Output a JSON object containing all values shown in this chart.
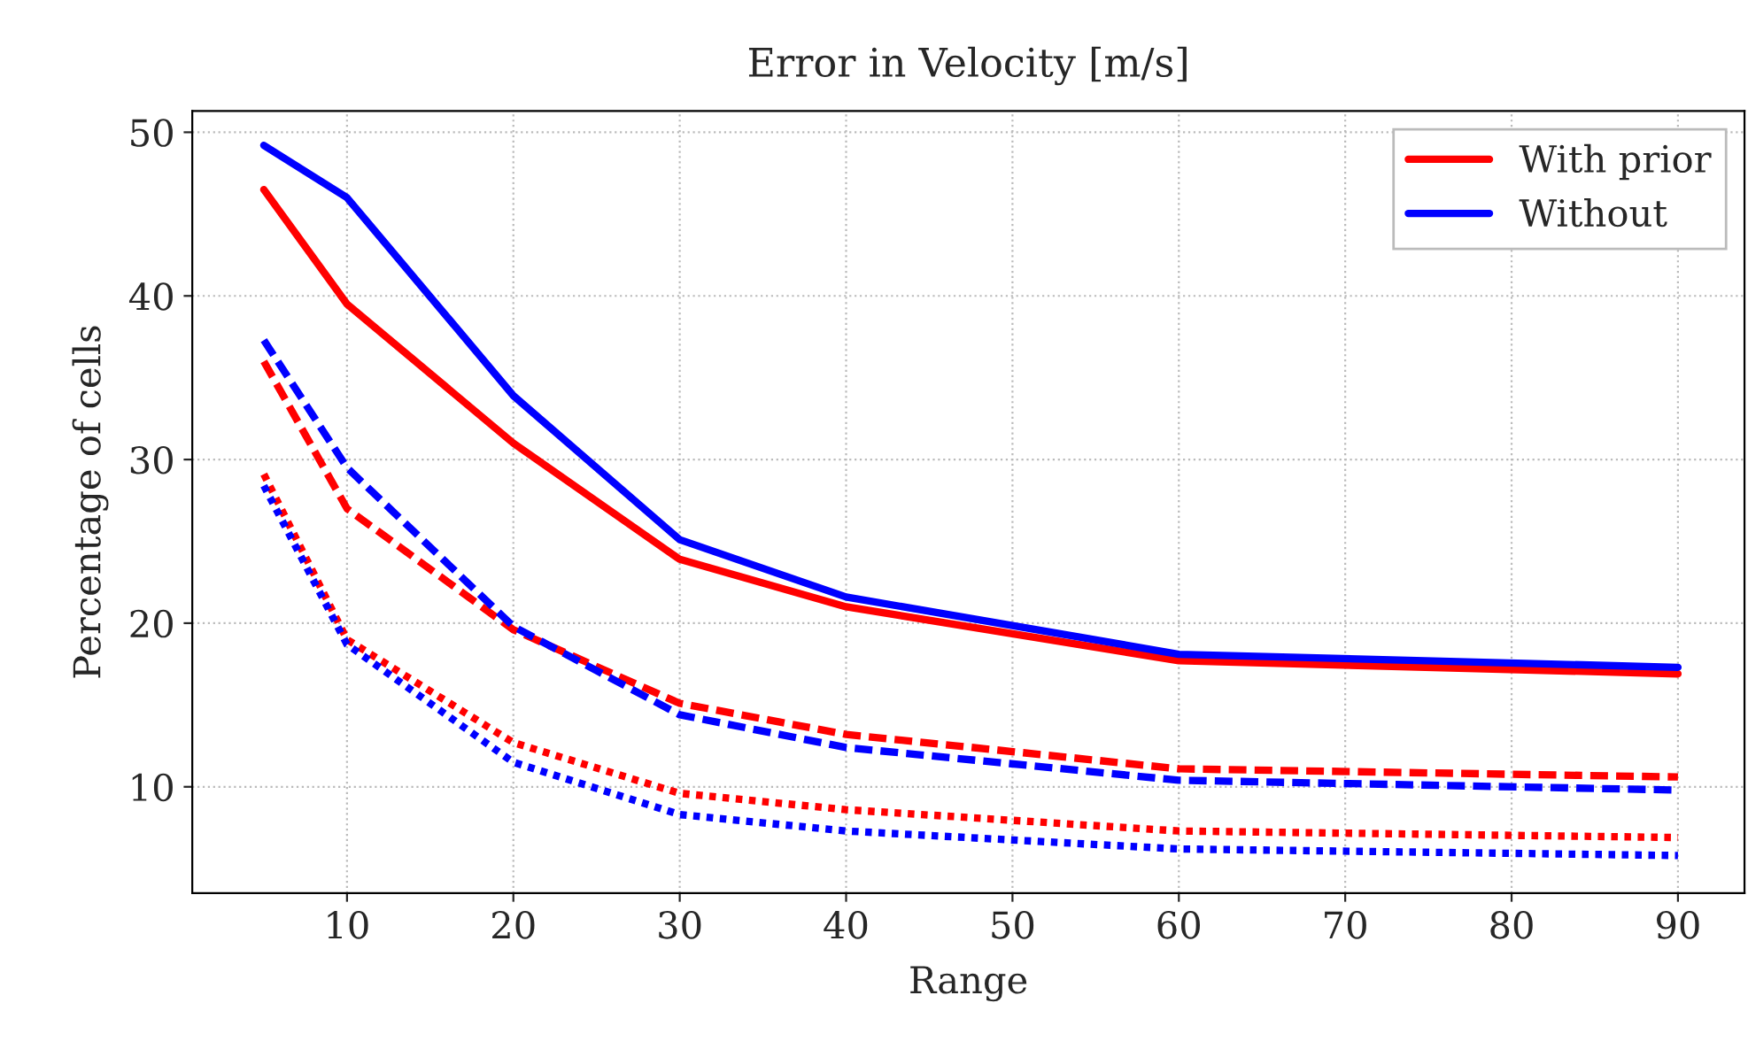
{
  "chart_data": {
    "type": "line",
    "title": "Error in Velocity [m/s]",
    "xlabel": "Range",
    "ylabel": "Percentage of cells",
    "x": [
      5,
      10,
      20,
      30,
      40,
      60,
      90
    ],
    "series": [
      {
        "name": "With prior",
        "color": "#ff0000",
        "line_style": "solid",
        "values": [
          46.5,
          39.5,
          31,
          23.9,
          21,
          17.7,
          16.9
        ]
      },
      {
        "name": "Without",
        "color": "#0000ff",
        "line_style": "solid",
        "values": [
          49.2,
          46,
          33.9,
          25.1,
          21.6,
          18.1,
          17.3
        ]
      },
      {
        "color": "#ff0000",
        "line_style": "dashed",
        "values": [
          36,
          27,
          19.6,
          15.1,
          13.2,
          11.1,
          10.6
        ]
      },
      {
        "color": "#0000ff",
        "line_style": "dashed",
        "values": [
          37.3,
          29.5,
          19.8,
          14.4,
          12.4,
          10.4,
          9.8
        ]
      },
      {
        "color": "#ff0000",
        "line_style": "dotted",
        "values": [
          29.1,
          19,
          12.7,
          9.6,
          8.6,
          7.3,
          6.9
        ]
      },
      {
        "color": "#0000ff",
        "line_style": "dotted",
        "values": [
          28.4,
          18.7,
          11.5,
          8.3,
          7.3,
          6.2,
          5.8
        ]
      }
    ],
    "xlim": [
      0.7,
      94
    ],
    "ylim": [
      3.5,
      51.3
    ],
    "xticks": [
      10,
      20,
      30,
      40,
      50,
      60,
      70,
      80,
      90
    ],
    "yticks": [
      10,
      20,
      30,
      40,
      50
    ],
    "grid": true,
    "legend": "top right"
  }
}
